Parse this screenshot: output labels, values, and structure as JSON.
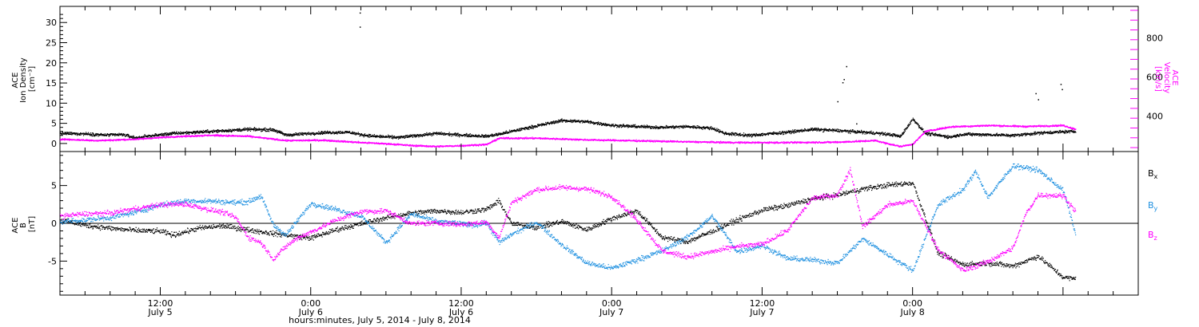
{
  "chart_data": [
    {
      "type": "scatter",
      "panel": "top",
      "colors": {
        "density": "#000000",
        "velocity": "#ff00ff"
      },
      "left_axis": {
        "label_lines": [
          "ACE",
          "Ion Density",
          "[cm⁻³]"
        ],
        "ylim": [
          -2,
          34
        ],
        "ticks": [
          0,
          5,
          10,
          15,
          20,
          25,
          30
        ]
      },
      "right_axis": {
        "label_lines": [
          "ACE",
          "Velocity",
          "[km/s]"
        ],
        "ylim": [
          220,
          960
        ],
        "ticks": [
          400,
          600,
          800
        ],
        "color": "#ff00ff"
      },
      "series": [
        {
          "name": "",
          "axis": "left",
          "color": "#000000",
          "x": [
            0,
            2,
            3.5,
            5,
            6,
            7.5,
            9,
            12,
            15,
            17,
            18,
            21,
            23,
            24,
            25,
            27,
            30,
            32,
            34,
            35,
            37,
            40,
            42,
            44,
            46,
            48,
            50,
            52,
            53,
            55,
            58,
            60,
            62,
            64,
            65,
            66.5,
            67,
            68,
            69,
            71,
            72,
            74,
            76,
            78,
            80,
            81
          ],
          "y": [
            2.6,
            2.5,
            2.2,
            2.3,
            1.5,
            2.1,
            2.6,
            3.1,
            3.6,
            3.5,
            2.2,
            2.8,
            2.9,
            2.3,
            1.9,
            1.6,
            2.6,
            2.2,
            1.9,
            2.4,
            3.8,
            5.8,
            5.5,
            4.6,
            4.3,
            4.1,
            4.3,
            3.9,
            2.6,
            2.1,
            2.9,
            3.6,
            3.3,
            2.9,
            2.7,
            2.2,
            1.8,
            6.2,
            2.6,
            1.7,
            2.4,
            2.3,
            2.1,
            2.7,
            3.0,
            3.1
          ]
        },
        {
          "name": "",
          "axis": "right",
          "color": "#ff00ff",
          "x": [
            0,
            3,
            6,
            9,
            12,
            15,
            18,
            21,
            24,
            26,
            28,
            30,
            32,
            34,
            35,
            38,
            42,
            46,
            50,
            54,
            58,
            62,
            65,
            66.5,
            67,
            68,
            69,
            71,
            74,
            77,
            80,
            81
          ],
          "y": [
            285,
            278,
            285,
            298,
            305,
            300,
            278,
            280,
            268,
            262,
            253,
            248,
            252,
            258,
            290,
            290,
            282,
            277,
            272,
            268,
            268,
            270,
            278,
            255,
            248,
            260,
            325,
            348,
            355,
            350,
            355,
            335
          ]
        }
      ],
      "outliers": [
        {
          "x": 23.9,
          "y": 32.5
        },
        {
          "x": 23.9,
          "y": 29.0
        },
        {
          "x": 62.7,
          "y": 19.2
        },
        {
          "x": 62.5,
          "y": 16.0
        },
        {
          "x": 62.4,
          "y": 15.2
        },
        {
          "x": 62.0,
          "y": 10.5
        },
        {
          "x": 63.5,
          "y": 5.0
        },
        {
          "x": 77.8,
          "y": 12.5
        },
        {
          "x": 78.0,
          "y": 11.0
        },
        {
          "x": 79.8,
          "y": 14.8
        },
        {
          "x": 79.9,
          "y": 13.5
        }
      ]
    },
    {
      "type": "scatter",
      "panel": "bottom",
      "axis": {
        "label_lines": [
          "ACE",
          "B",
          "[nT]"
        ],
        "ylim": [
          -9.5,
          9.5
        ],
        "ticks": [
          -5,
          0,
          5
        ],
        "zero_line": true
      },
      "legend": [
        {
          "label": "B",
          "sub": "x",
          "color": "#000000"
        },
        {
          "label": "B",
          "sub": "y",
          "color": "#1e90e0"
        },
        {
          "label": "B",
          "sub": "z",
          "color": "#ff00ff"
        }
      ],
      "series": [
        {
          "name": "Bx",
          "color": "#000000",
          "x": [
            0,
            2,
            4,
            6,
            8,
            9,
            11,
            13,
            15,
            17,
            20,
            22,
            24,
            26,
            28,
            30,
            32,
            34,
            35,
            36,
            38,
            40,
            42,
            44,
            46,
            48,
            50,
            52,
            54,
            56,
            58,
            60,
            62,
            64,
            66,
            68,
            70,
            72,
            74,
            76,
            78,
            80,
            81
          ],
          "y": [
            0.5,
            -0.2,
            -0.6,
            -0.9,
            -1.0,
            -1.5,
            -0.6,
            -0.3,
            -0.8,
            -1.3,
            -1.9,
            -0.8,
            0.0,
            0.8,
            1.4,
            1.7,
            1.5,
            1.9,
            3.0,
            0.0,
            -0.5,
            0.3,
            -0.8,
            0.7,
            1.7,
            -1.8,
            -2.4,
            -1.0,
            0.5,
            1.8,
            2.4,
            3.3,
            3.8,
            4.6,
            5.1,
            5.4,
            -3.9,
            -5.4,
            -5.2,
            -5.6,
            -4.3,
            -7.1,
            -7.3
          ]
        },
        {
          "name": "By",
          "color": "#1e90e0",
          "x": [
            0,
            2,
            4,
            6,
            8,
            10,
            12,
            14,
            15,
            16,
            17,
            18,
            20,
            22,
            24,
            26,
            28,
            30,
            32,
            33,
            34,
            35,
            36,
            38,
            40,
            42,
            44,
            46,
            48,
            50,
            52,
            54,
            56,
            58,
            60,
            62,
            64,
            66,
            68,
            70,
            72,
            73,
            74,
            76,
            78,
            80,
            81
          ],
          "y": [
            0.3,
            0.5,
            0.8,
            1.5,
            2.5,
            3.0,
            3.0,
            2.8,
            2.9,
            3.7,
            -0.2,
            -1.5,
            2.7,
            1.9,
            1.0,
            -2.5,
            1.3,
            0.3,
            0.0,
            -0.2,
            0.1,
            -2.5,
            -1.4,
            0.2,
            -2.8,
            -5.2,
            -5.9,
            -4.8,
            -3.6,
            -1.8,
            1.0,
            -3.7,
            -2.9,
            -4.6,
            -4.8,
            -5.2,
            -2.0,
            -4.1,
            -6.2,
            2.5,
            4.5,
            6.9,
            3.5,
            7.7,
            7.1,
            4.4,
            -1.5
          ]
        },
        {
          "name": "Bz",
          "color": "#ff00ff",
          "x": [
            0,
            2,
            4,
            6,
            8,
            10,
            12,
            13,
            14,
            15,
            16,
            17,
            18,
            19,
            20,
            22,
            24,
            26,
            28,
            30,
            32,
            34,
            35,
            36,
            38,
            40,
            42,
            44,
            46,
            48,
            50,
            52,
            54,
            56,
            58,
            60,
            62,
            63,
            64,
            66,
            68,
            70,
            72,
            74,
            76,
            77,
            78,
            80,
            81
          ],
          "y": [
            1.0,
            1.3,
            1.4,
            2.0,
            2.5,
            2.6,
            1.8,
            1.5,
            0.8,
            -1.8,
            -2.5,
            -4.7,
            -3.0,
            -1.8,
            -1.1,
            0.5,
            1.6,
            1.7,
            0.0,
            0.1,
            -0.1,
            0.2,
            -1.8,
            2.8,
            4.5,
            4.8,
            4.6,
            3.6,
            0.5,
            -3.6,
            -4.4,
            -3.7,
            -3.0,
            -2.7,
            -0.9,
            3.4,
            3.8,
            7.2,
            -0.4,
            2.5,
            3.0,
            -3.4,
            -6.2,
            -5.0,
            -3.2,
            1.3,
            3.8,
            3.7,
            1.6
          ]
        }
      ]
    }
  ],
  "x_axis": {
    "range_hours": [
      0,
      86
    ],
    "major_ticks": [
      {
        "h": 8,
        "time": "12:00",
        "date": "July 5"
      },
      {
        "h": 20,
        "time": "0:00",
        "date": "July 6"
      },
      {
        "h": 32,
        "time": "12:00",
        "date": "July 6"
      },
      {
        "h": 44,
        "time": "0:00",
        "date": "July 7"
      },
      {
        "h": 56,
        "time": "12:00",
        "date": "July 7"
      },
      {
        "h": 68,
        "time": "0:00",
        "date": "July 8"
      }
    ],
    "title": "hours:minutes,  July  5, 2014 - July  8, 2014"
  }
}
